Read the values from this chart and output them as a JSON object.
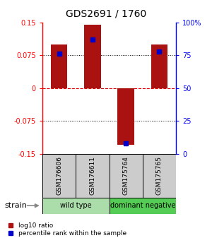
{
  "title": "GDS2691 / 1760",
  "samples": [
    "GSM176606",
    "GSM176611",
    "GSM175764",
    "GSM175765"
  ],
  "log10_ratio": [
    0.1,
    0.145,
    -0.13,
    0.1
  ],
  "percentile_rank": [
    76,
    87,
    8,
    78
  ],
  "ylim_left": [
    -0.15,
    0.15
  ],
  "ylim_right": [
    0,
    100
  ],
  "yticks_left": [
    -0.15,
    -0.075,
    0,
    0.075,
    0.15
  ],
  "yticks_right": [
    0,
    25,
    50,
    75,
    100
  ],
  "ytick_labels_left": [
    "-0.15",
    "-0.075",
    "0",
    "0.075",
    "0.15"
  ],
  "ytick_labels_right": [
    "0",
    "25",
    "50",
    "75",
    "100%"
  ],
  "grid_lines_dotted": [
    0.075,
    -0.075
  ],
  "zero_line_color": "#dd0000",
  "bar_color": "#aa1111",
  "dot_color": "#0000cc",
  "bar_width": 0.5,
  "groups": [
    {
      "label": "wild type",
      "indices": [
        0,
        1
      ],
      "color": "#aaddaa"
    },
    {
      "label": "dominant negative",
      "indices": [
        2,
        3
      ],
      "color": "#55cc55"
    }
  ],
  "strain_label": "strain",
  "legend": [
    {
      "color": "#aa1111",
      "label": "log10 ratio"
    },
    {
      "color": "#0000cc",
      "label": "percentile rank within the sample"
    }
  ],
  "bg_color": "#ffffff",
  "sample_box_color": "#cccccc",
  "title_fontsize": 10,
  "tick_fontsize": 7,
  "sample_fontsize": 6.5,
  "group_fontsize": 7,
  "legend_fontsize": 6.5
}
